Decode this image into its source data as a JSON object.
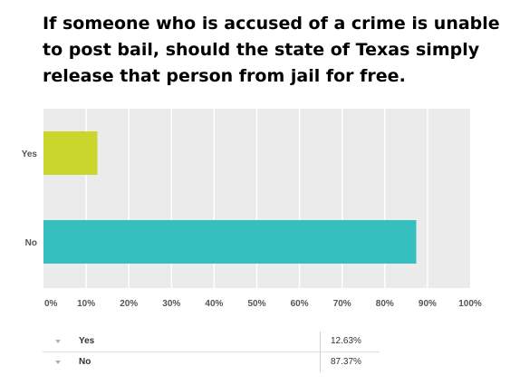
{
  "question": "If someone who is accused of a crime is unable to post bail, should the state of Texas simply release that person from jail for free.",
  "colors": {
    "yes": "#cbd62d",
    "no": "#36bfbf",
    "plot_bg": "#ebebeb",
    "grid": "#ffffff"
  },
  "chart_data": {
    "type": "bar",
    "orientation": "horizontal",
    "categories": [
      "Yes",
      "No"
    ],
    "values": [
      12.63,
      87.37
    ],
    "xlim": [
      0,
      100
    ],
    "xticks": [
      "0%",
      "10%",
      "20%",
      "30%",
      "40%",
      "50%",
      "60%",
      "70%",
      "80%",
      "90%",
      "100%"
    ],
    "grid": true,
    "legend": "none"
  },
  "table": {
    "rows": [
      {
        "label": "Yes",
        "value": "12.63%"
      },
      {
        "label": "No",
        "value": "87.37%"
      }
    ]
  }
}
